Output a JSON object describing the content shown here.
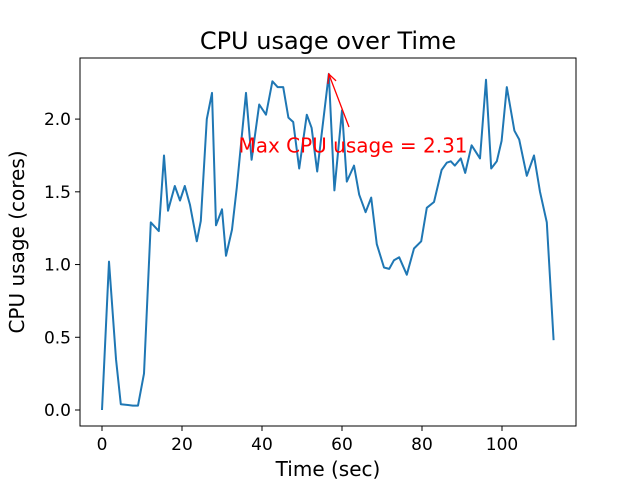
{
  "chart_data": {
    "type": "line",
    "title": "CPU usage over Time",
    "xlabel": "Time (sec)",
    "ylabel": "CPU usage (cores)",
    "xlim": [
      -5.5,
      118.5
    ],
    "ylim": [
      -0.11,
      2.42
    ],
    "xticks": [
      0,
      20,
      40,
      60,
      80,
      100
    ],
    "xtick_labels": [
      "0",
      "20",
      "40",
      "60",
      "80",
      "100"
    ],
    "yticks": [
      0.0,
      0.5,
      1.0,
      1.5,
      2.0
    ],
    "ytick_labels": [
      "0.0",
      "0.5",
      "1.0",
      "1.5",
      "2.0"
    ],
    "grid": false,
    "series": [
      {
        "name": "CPU usage",
        "color": "#1f77b4",
        "x": [
          0,
          1.75,
          3.5,
          4.7,
          7.7,
          9,
          10.5,
          12.2,
          14.2,
          15.5,
          16.5,
          18.2,
          19.5,
          20.7,
          22,
          23.7,
          24.7,
          26.2,
          27.5,
          28.5,
          30,
          31,
          32.5,
          33.7,
          36,
          37.4,
          39.3,
          41,
          42.6,
          43.9,
          45.3,
          46.6,
          47.8,
          49.3,
          51.2,
          52.4,
          53.8,
          56.7,
          58.1,
          60,
          61.2,
          63,
          64.3,
          65.9,
          67.3,
          68.7,
          70.5,
          71.8,
          73,
          74.3,
          76.2,
          78,
          79.8,
          81.2,
          83,
          84.9,
          86.2,
          87.2,
          88.2,
          89.7,
          90.8,
          92.4,
          94.5,
          96,
          97.3,
          98.7,
          99.9,
          101.2,
          103.1,
          104.3,
          106.2,
          108,
          109.5,
          111.2,
          112.9
        ],
        "y": [
          0.0,
          1.02,
          0.35,
          0.04,
          0.03,
          0.03,
          0.25,
          1.29,
          1.23,
          1.75,
          1.37,
          1.54,
          1.44,
          1.54,
          1.41,
          1.16,
          1.3,
          2.0,
          2.18,
          1.27,
          1.38,
          1.06,
          1.24,
          1.53,
          2.18,
          1.72,
          2.1,
          2.03,
          2.26,
          2.22,
          2.22,
          2.01,
          1.98,
          1.66,
          2.03,
          1.94,
          1.64,
          2.31,
          1.51,
          2.06,
          1.57,
          1.68,
          1.48,
          1.36,
          1.46,
          1.14,
          0.98,
          0.97,
          1.03,
          1.05,
          0.93,
          1.11,
          1.16,
          1.39,
          1.43,
          1.65,
          1.7,
          1.71,
          1.68,
          1.73,
          1.63,
          1.82,
          1.73,
          2.27,
          1.66,
          1.71,
          1.85,
          2.22,
          1.92,
          1.86,
          1.61,
          1.75,
          1.5,
          1.29,
          0.48
        ]
      }
    ],
    "annotation": {
      "text": "Max CPU usage = 2.31",
      "xy": [
        56.7,
        2.31
      ],
      "xytext": [
        31.75,
        1.82
      ],
      "color": "#ff0000"
    }
  }
}
